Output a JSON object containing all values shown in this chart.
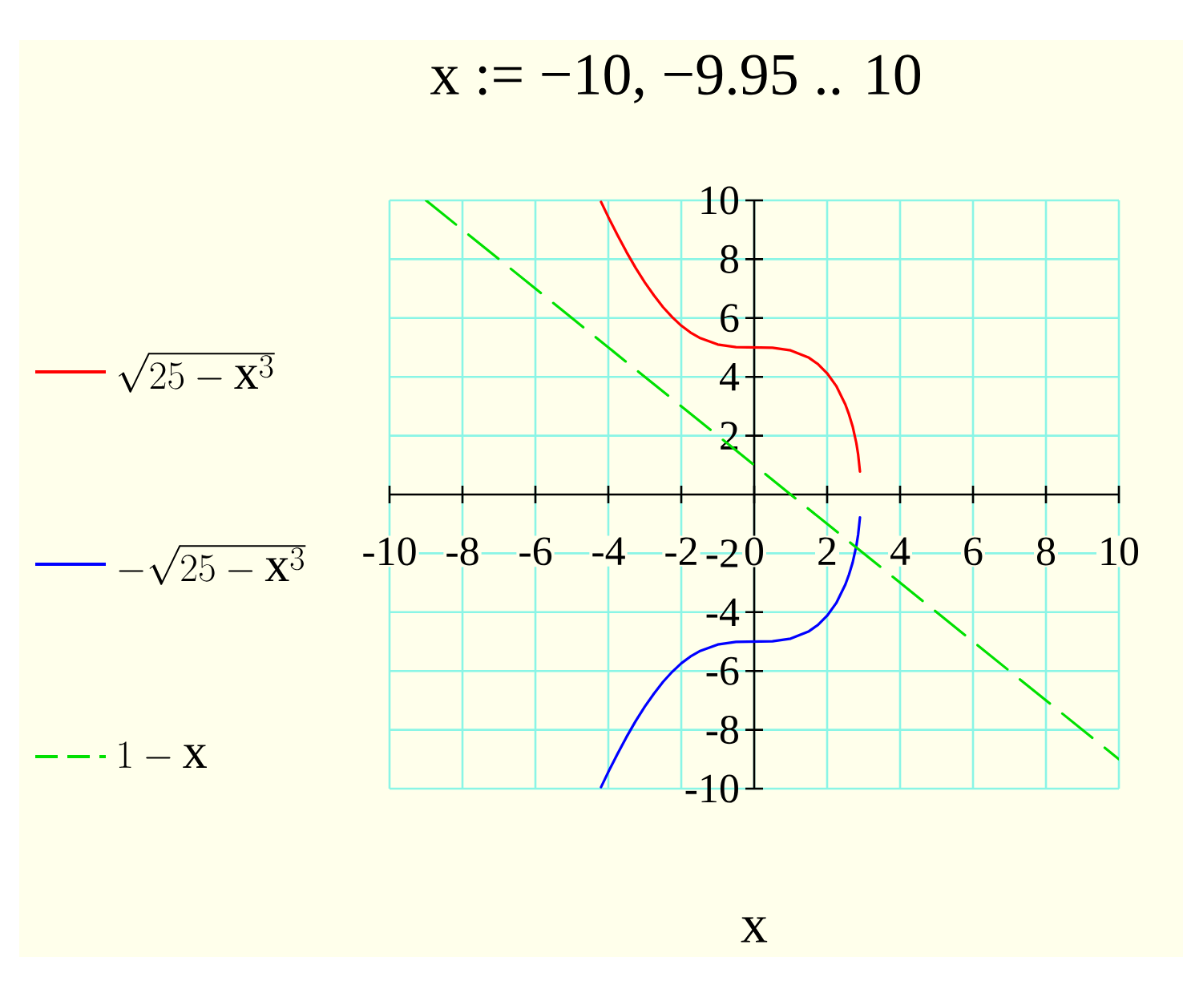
{
  "chart_data": {
    "type": "line",
    "title": "x := −10, −9.95 .. 10",
    "xlabel": "x",
    "xlim": [
      -10,
      10
    ],
    "ylim": [
      -10,
      10
    ],
    "xticks": [
      -10,
      -8,
      -6,
      -4,
      -2,
      0,
      2,
      4,
      6,
      8,
      10
    ],
    "yticks": [
      -10,
      -8,
      -6,
      -4,
      -2,
      2,
      4,
      6,
      8,
      10
    ],
    "grid": true,
    "legend": "left",
    "marker": "none",
    "series": [
      {
        "name": "\\sqrt{25-\\mathrm{x}^{3}}",
        "color": "#ff0000",
        "x": [
          -4.2,
          -4.1,
          -4,
          -3.75,
          -3.5,
          -3.25,
          -3,
          -2.75,
          -2.5,
          -2.25,
          -2,
          -1.75,
          -1.5,
          -1,
          -0.5,
          0,
          0.5,
          1,
          1.5,
          1.75,
          2,
          2.25,
          2.5,
          2.6,
          2.7,
          2.8,
          2.85,
          2.9
        ],
        "values": [
          9.95,
          9.69,
          9.43,
          8.82,
          8.24,
          7.7,
          7.21,
          6.77,
          6.37,
          6.03,
          5.74,
          5.51,
          5.33,
          5.1,
          5.01,
          5,
          4.99,
          4.9,
          4.65,
          4.43,
          4.12,
          3.69,
          3.06,
          2.72,
          2.31,
          1.75,
          1.36,
          0.78
        ]
      },
      {
        "name": "-\\sqrt{25-\\mathrm{x}^{3}}",
        "color": "#0000ff",
        "x": [
          -4.2,
          -4.1,
          -4,
          -3.75,
          -3.5,
          -3.25,
          -3,
          -2.75,
          -2.5,
          -2.25,
          -2,
          -1.75,
          -1.5,
          -1,
          -0.5,
          0,
          0.5,
          1,
          1.5,
          1.75,
          2,
          2.25,
          2.5,
          2.6,
          2.7,
          2.8,
          2.85,
          2.9
        ],
        "values": [
          -9.95,
          -9.69,
          -9.43,
          -8.82,
          -8.24,
          -7.7,
          -7.21,
          -6.77,
          -6.37,
          -6.03,
          -5.74,
          -5.51,
          -5.33,
          -5.1,
          -5.01,
          -5,
          -4.99,
          -4.9,
          -4.65,
          -4.43,
          -4.12,
          -3.69,
          -3.06,
          -2.72,
          -2.31,
          -1.75,
          -1.36,
          -0.78
        ]
      },
      {
        "name": "1-\\mathrm{x}",
        "color": "#00e000",
        "line_style": "dashed",
        "x": [
          -9,
          -5,
          0,
          5,
          10
        ],
        "values": [
          10,
          6,
          1,
          -4,
          -9
        ]
      }
    ]
  }
}
